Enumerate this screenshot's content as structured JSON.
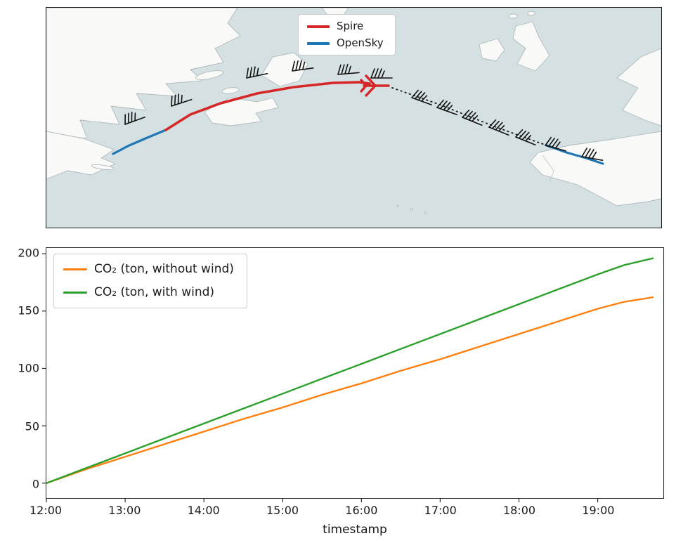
{
  "figure": {
    "background": "#ffffff"
  },
  "map": {
    "sea_color": "#d5e0e3",
    "land_color": "#f9f9f7",
    "coast_color": "#b0bbbd",
    "track_styles": {
      "spire": {
        "color": "#d62728",
        "style": "solid"
      },
      "opensky": {
        "color": "#1f77b4",
        "style": "solid"
      },
      "gap": {
        "color": "#1a1a1a",
        "style": "dotted"
      }
    },
    "icons": [
      "wind-barb-icon",
      "airplane-icon"
    ]
  },
  "chart_data": [
    {
      "type": "map",
      "title": "",
      "legend": [
        {
          "label": "Spire",
          "color": "#d62728"
        },
        {
          "label": "OpenSky",
          "color": "#1f77b4"
        }
      ],
      "legend_position": "upper center",
      "features": "Transatlantic flight track from northeastern North America to Spain: blue OpenSky segments near both coasts, solid red Spire segment over the western Atlantic ending at a red airplane marker, dotted continuation toward Iberia, wind barbs plotted along the whole route"
    },
    {
      "type": "line",
      "title": "",
      "xlabel": "timestamp",
      "ylabel": "",
      "grid": false,
      "legend_position": "upper left",
      "xlim_minutes": [
        0,
        470
      ],
      "ylim": [
        -13,
        205
      ],
      "x_tick_labels": [
        "12:00",
        "13:00",
        "14:00",
        "15:00",
        "16:00",
        "17:00",
        "18:00",
        "19:00"
      ],
      "x_tick_minutes": [
        0,
        60,
        120,
        180,
        240,
        300,
        360,
        420
      ],
      "y_ticks": [
        0,
        50,
        100,
        150,
        200
      ],
      "x_minutes": [
        0,
        30,
        60,
        90,
        120,
        150,
        180,
        210,
        240,
        270,
        300,
        330,
        360,
        390,
        420,
        440,
        462
      ],
      "series": [
        {
          "name": "CO₂ (ton, without wind)",
          "color": "#ff7f0e",
          "values": [
            0,
            12,
            23,
            34,
            45,
            56,
            66,
            77,
            87,
            98,
            108,
            119,
            130,
            141,
            152,
            158,
            162
          ]
        },
        {
          "name": "CO₂ (ton, with wind)",
          "color": "#2ca02c",
          "values": [
            0,
            13,
            26,
            39,
            52,
            65,
            78,
            91,
            104,
            117,
            130,
            143,
            156,
            169,
            182,
            190,
            196
          ]
        }
      ]
    }
  ]
}
